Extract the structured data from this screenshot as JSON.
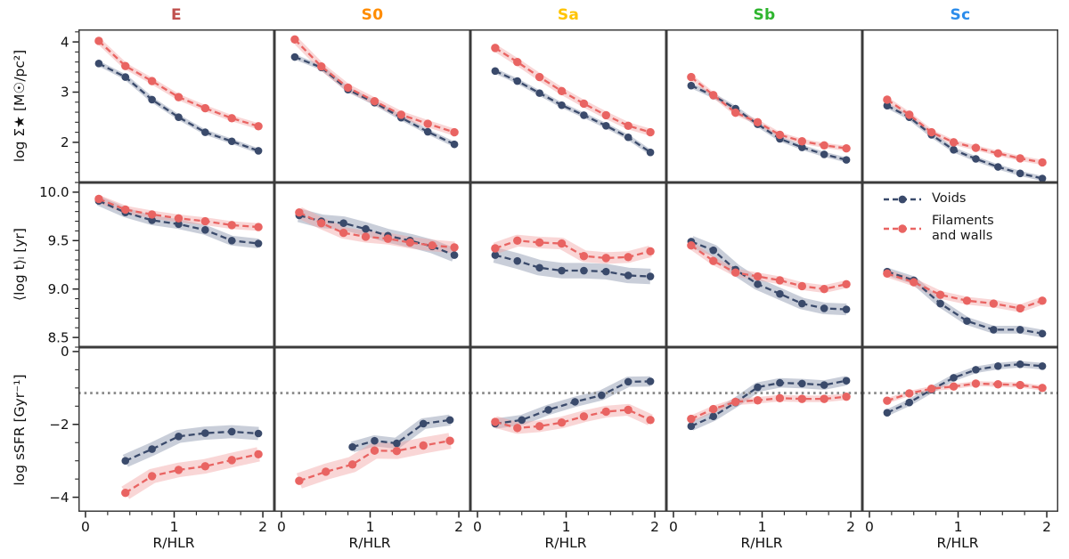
{
  "chart_data": {
    "type": "line",
    "xlabel": "R/HLR",
    "xlim": [
      -0.08,
      2.13
    ],
    "xticks": [
      0,
      1,
      2
    ],
    "xtick_labels": [
      "0",
      "1",
      "2"
    ],
    "xminor_step": 0.25,
    "grid": false,
    "legend_position": "middle-row-last-panel-upper-left",
    "columns": [
      {
        "label": "E",
        "color": "#C0504D"
      },
      {
        "label": "S0",
        "color": "#FF8C00"
      },
      {
        "label": "Sa",
        "color": "#FFC400"
      },
      {
        "label": "Sb",
        "color": "#2EB52E"
      },
      {
        "label": "Sc",
        "color": "#2B8CEB"
      }
    ],
    "rows": [
      {
        "key": "sigma",
        "ylabel": "log Σ★ [M☉/pc²]",
        "ylim": [
          1.2,
          4.25
        ],
        "yticks": [
          2,
          3,
          4
        ],
        "ytick_labels": [
          "2",
          "3",
          "4"
        ],
        "yminor_step": 0.2
      },
      {
        "key": "age",
        "ylabel": "⟨log t⟩ₗ [yr]",
        "ylim": [
          8.4,
          10.1
        ],
        "yticks": [
          8.5,
          9.0,
          9.5,
          10.0
        ],
        "ytick_labels": [
          "8.5",
          "9.0",
          "9.5",
          "10.0"
        ],
        "yminor_step": 0.1
      },
      {
        "key": "ssfr",
        "ylabel": "log sSFR [Gyr⁻¹]",
        "ylim": [
          -4.4,
          0.12
        ],
        "yticks": [
          -4,
          -2,
          0
        ],
        "ytick_labels": [
          "−4",
          "−2",
          "0"
        ],
        "yminor_step": 0.5,
        "reference_line": {
          "y": -1.14,
          "style": "dotted",
          "color": "#8c8c8c"
        }
      }
    ],
    "series_meta": {
      "voids": {
        "name": "Voids",
        "color": "#3A4A6B",
        "band_color": "#8793AB"
      },
      "filaments": {
        "name": "Filaments and walls",
        "color": "#E96462",
        "band_color": "#F2A5A4"
      }
    },
    "panels": [
      {
        "row": "sigma",
        "col": "E",
        "voids": {
          "x": [
            0.15,
            0.45,
            0.75,
            1.05,
            1.35,
            1.65,
            1.95
          ],
          "y": [
            3.57,
            3.3,
            2.85,
            2.5,
            2.2,
            2.02,
            1.83
          ],
          "band": 0.05
        },
        "filaments": {
          "x": [
            0.15,
            0.45,
            0.75,
            1.05,
            1.35,
            1.65,
            1.95
          ],
          "y": [
            4.02,
            3.52,
            3.22,
            2.9,
            2.68,
            2.48,
            2.32
          ],
          "band": 0.06
        }
      },
      {
        "row": "sigma",
        "col": "S0",
        "voids": {
          "x": [
            0.15,
            0.45,
            0.75,
            1.05,
            1.35,
            1.65,
            1.95
          ],
          "y": [
            3.7,
            3.49,
            3.05,
            2.79,
            2.49,
            2.21,
            1.96
          ],
          "band": 0.05
        },
        "filaments": {
          "x": [
            0.15,
            0.45,
            0.75,
            1.05,
            1.35,
            1.65,
            1.95
          ],
          "y": [
            4.05,
            3.51,
            3.09,
            2.82,
            2.55,
            2.37,
            2.2
          ],
          "band": 0.07
        }
      },
      {
        "row": "sigma",
        "col": "Sa",
        "voids": {
          "x": [
            0.2,
            0.45,
            0.7,
            0.95,
            1.2,
            1.45,
            1.7,
            1.95
          ],
          "y": [
            3.42,
            3.22,
            2.98,
            2.74,
            2.54,
            2.33,
            2.1,
            1.8
          ],
          "band": 0.05
        },
        "filaments": {
          "x": [
            0.2,
            0.45,
            0.7,
            0.95,
            1.2,
            1.45,
            1.7,
            1.95
          ],
          "y": [
            3.88,
            3.6,
            3.3,
            3.02,
            2.77,
            2.54,
            2.33,
            2.2
          ],
          "band": 0.07
        }
      },
      {
        "row": "sigma",
        "col": "Sb",
        "voids": {
          "x": [
            0.2,
            0.45,
            0.7,
            0.95,
            1.2,
            1.45,
            1.7,
            1.95
          ],
          "y": [
            3.13,
            2.93,
            2.67,
            2.36,
            2.07,
            1.9,
            1.76,
            1.65
          ],
          "band": 0.05
        },
        "filaments": {
          "x": [
            0.2,
            0.45,
            0.7,
            0.95,
            1.2,
            1.45,
            1.7,
            1.95
          ],
          "y": [
            3.3,
            2.94,
            2.59,
            2.4,
            2.15,
            2.02,
            1.94,
            1.88
          ],
          "band": 0.05
        }
      },
      {
        "row": "sigma",
        "col": "Sc",
        "voids": {
          "x": [
            0.2,
            0.45,
            0.7,
            0.95,
            1.2,
            1.45,
            1.7,
            1.95
          ],
          "y": [
            2.73,
            2.5,
            2.15,
            1.85,
            1.67,
            1.51,
            1.38,
            1.28
          ],
          "band": 0.05
        },
        "filaments": {
          "x": [
            0.2,
            0.45,
            0.7,
            0.95,
            1.2,
            1.45,
            1.7,
            1.95
          ],
          "y": [
            2.85,
            2.55,
            2.2,
            2.0,
            1.89,
            1.78,
            1.68,
            1.6
          ],
          "band": 0.05
        }
      },
      {
        "row": "age",
        "col": "E",
        "voids": {
          "x": [
            0.15,
            0.45,
            0.75,
            1.05,
            1.35,
            1.65,
            1.95
          ],
          "y": [
            9.91,
            9.79,
            9.71,
            9.67,
            9.61,
            9.5,
            9.47
          ],
          "band": 0.05
        },
        "filaments": {
          "x": [
            0.15,
            0.45,
            0.75,
            1.05,
            1.35,
            1.65,
            1.95
          ],
          "y": [
            9.93,
            9.82,
            9.77,
            9.73,
            9.7,
            9.66,
            9.64
          ],
          "band": 0.04
        }
      },
      {
        "row": "age",
        "col": "S0",
        "voids": {
          "x": [
            0.2,
            0.45,
            0.7,
            0.95,
            1.2,
            1.45,
            1.7,
            1.95
          ],
          "y": [
            9.76,
            9.7,
            9.68,
            9.62,
            9.55,
            9.5,
            9.44,
            9.35
          ],
          "band": 0.07
        },
        "filaments": {
          "x": [
            0.2,
            0.45,
            0.7,
            0.95,
            1.2,
            1.45,
            1.7,
            1.95
          ],
          "y": [
            9.79,
            9.68,
            9.58,
            9.54,
            9.52,
            9.48,
            9.45,
            9.43
          ],
          "band": 0.06
        }
      },
      {
        "row": "age",
        "col": "Sa",
        "voids": {
          "x": [
            0.2,
            0.45,
            0.7,
            0.95,
            1.2,
            1.45,
            1.7,
            1.95
          ],
          "y": [
            9.35,
            9.29,
            9.22,
            9.19,
            9.19,
            9.18,
            9.14,
            9.13
          ],
          "band": 0.08
        },
        "filaments": {
          "x": [
            0.2,
            0.45,
            0.7,
            0.95,
            1.2,
            1.45,
            1.7,
            1.95
          ],
          "y": [
            9.42,
            9.5,
            9.48,
            9.47,
            9.34,
            9.32,
            9.33,
            9.39
          ],
          "band": 0.06
        }
      },
      {
        "row": "age",
        "col": "Sb",
        "voids": {
          "x": [
            0.2,
            0.45,
            0.7,
            0.95,
            1.2,
            1.45,
            1.7,
            1.95
          ],
          "y": [
            9.49,
            9.4,
            9.2,
            9.05,
            8.95,
            8.85,
            8.8,
            8.79
          ],
          "band": 0.06
        },
        "filaments": {
          "x": [
            0.2,
            0.45,
            0.7,
            0.95,
            1.2,
            1.45,
            1.7,
            1.95
          ],
          "y": [
            9.45,
            9.29,
            9.17,
            9.13,
            9.09,
            9.03,
            9.0,
            9.05
          ],
          "band": 0.04
        }
      },
      {
        "row": "age",
        "col": "Sc",
        "voids": {
          "x": [
            0.2,
            0.5,
            0.8,
            1.1,
            1.4,
            1.7,
            1.95
          ],
          "y": [
            9.18,
            9.09,
            8.85,
            8.67,
            8.58,
            8.58,
            8.54
          ],
          "band": 0.04
        },
        "filaments": {
          "x": [
            0.2,
            0.5,
            0.8,
            1.1,
            1.4,
            1.7,
            1.95
          ],
          "y": [
            9.16,
            9.07,
            8.94,
            8.88,
            8.85,
            8.8,
            8.88
          ],
          "band": 0.04
        }
      },
      {
        "row": "ssfr",
        "col": "E",
        "voids": {
          "x": [
            0.45,
            0.75,
            1.05,
            1.35,
            1.65,
            1.95
          ],
          "y": [
            -3.0,
            -2.68,
            -2.33,
            -2.24,
            -2.2,
            -2.25
          ],
          "band": 0.18
        },
        "filaments": {
          "x": [
            0.45,
            0.75,
            1.05,
            1.35,
            1.65,
            1.95
          ],
          "y": [
            -3.88,
            -3.42,
            -3.25,
            -3.15,
            -2.98,
            -2.82
          ],
          "band": 0.2
        }
      },
      {
        "row": "ssfr",
        "col": "S0",
        "voids": {
          "x": [
            0.8,
            1.05,
            1.3,
            1.6,
            1.9
          ],
          "y": [
            -2.62,
            -2.45,
            -2.52,
            -1.98,
            -1.88
          ],
          "band": 0.15
        },
        "filaments": {
          "x": [
            0.2,
            0.5,
            0.8,
            1.05,
            1.3,
            1.6,
            1.9
          ],
          "y": [
            -3.55,
            -3.3,
            -3.1,
            -2.72,
            -2.73,
            -2.58,
            -2.45
          ],
          "band": 0.22
        }
      },
      {
        "row": "ssfr",
        "col": "Sa",
        "voids": {
          "x": [
            0.2,
            0.5,
            0.8,
            1.1,
            1.4,
            1.7,
            1.95
          ],
          "y": [
            -1.98,
            -1.88,
            -1.6,
            -1.38,
            -1.2,
            -0.83,
            -0.82
          ],
          "band": 0.14
        },
        "filaments": {
          "x": [
            0.2,
            0.45,
            0.7,
            0.95,
            1.2,
            1.45,
            1.7,
            1.95
          ],
          "y": [
            -1.93,
            -2.1,
            -2.05,
            -1.95,
            -1.78,
            -1.65,
            -1.6,
            -1.88
          ],
          "band": 0.16
        }
      },
      {
        "row": "ssfr",
        "col": "Sb",
        "voids": {
          "x": [
            0.2,
            0.45,
            0.7,
            0.95,
            1.2,
            1.45,
            1.7,
            1.95
          ],
          "y": [
            -2.05,
            -1.78,
            -1.4,
            -0.98,
            -0.86,
            -0.88,
            -0.92,
            -0.8
          ],
          "band": 0.13
        },
        "filaments": {
          "x": [
            0.2,
            0.45,
            0.7,
            0.95,
            1.2,
            1.45,
            1.7,
            1.95
          ],
          "y": [
            -1.85,
            -1.58,
            -1.38,
            -1.34,
            -1.28,
            -1.3,
            -1.3,
            -1.24
          ],
          "band": 0.09
        }
      },
      {
        "row": "ssfr",
        "col": "Sc",
        "voids": {
          "x": [
            0.2,
            0.45,
            0.7,
            0.95,
            1.2,
            1.45,
            1.7,
            1.95
          ],
          "y": [
            -1.68,
            -1.4,
            -1.05,
            -0.72,
            -0.5,
            -0.4,
            -0.35,
            -0.4
          ],
          "band": 0.09
        },
        "filaments": {
          "x": [
            0.2,
            0.45,
            0.7,
            0.95,
            1.2,
            1.45,
            1.7,
            1.95
          ],
          "y": [
            -1.35,
            -1.15,
            -1.02,
            -0.96,
            -0.88,
            -0.9,
            -0.92,
            -1.0
          ],
          "band": 0.07
        }
      }
    ]
  }
}
